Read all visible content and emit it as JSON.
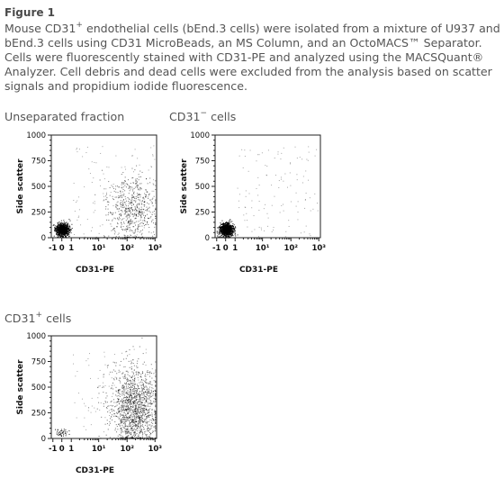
{
  "figure": {
    "title": "Figure 1",
    "caption_line1_a": "Mouse CD31",
    "caption_line1_sup": "+",
    "caption_line1_b": " endothelial cells (bEnd.3 cells) were isolated from a mixture of U937 and",
    "caption_line2": "bEnd.3 cells using CD31 MicroBeads, an MS Column, and an OctoMACS™ Separator.",
    "caption_line3": "Cells were fluorescently stained with CD31-PE and analyzed using the MACSQuant®",
    "caption_line4": "Analyzer. Cell debris and dead cells were excluded from the analysis based on scatter",
    "caption_line5": "signals and propidium iodide fluorescence."
  },
  "panels": {
    "unseparated": {
      "label": "Unseparated fraction"
    },
    "negative": {
      "label_main": "CD31",
      "label_sup": "−",
      "label_rest": " cells"
    },
    "positive": {
      "label_main": "CD31",
      "label_sup": "+",
      "label_rest": " cells"
    }
  },
  "chart_data": [
    {
      "type": "scatter",
      "title": "Unseparated fraction",
      "xlabel": "CD31-PE",
      "ylabel": "Side scatter",
      "x_scale": "biexponential",
      "x_ticks": [
        "-1",
        "0",
        "1",
        "10¹",
        "10²",
        "10³"
      ],
      "y_ticks": [
        "0",
        "250",
        "500",
        "750",
        "1000"
      ],
      "ylim": [
        0,
        1000
      ],
      "populations": [
        {
          "name": "",
          "center_x": 0,
          "center_y": 80,
          "approx_points": 900,
          "spread_y": 60
        },
        {
          "name": "",
          "center_x": 150,
          "center_y": 280,
          "approx_points": 600,
          "spread_y": 180
        }
      ]
    },
    {
      "type": "scatter",
      "title": "CD31− cells",
      "xlabel": "CD31-PE",
      "ylabel": "Side scatter",
      "x_scale": "biexponential",
      "x_ticks": [
        "-1",
        "0",
        "1",
        "10¹",
        "10²",
        "10³"
      ],
      "y_ticks": [
        "0",
        "250",
        "500",
        "750",
        "1000"
      ],
      "ylim": [
        0,
        1000
      ],
      "populations": [
        {
          "name": "",
          "center_x": 0,
          "center_y": 80,
          "approx_points": 1100,
          "spread_y": 60
        }
      ]
    },
    {
      "type": "scatter",
      "title": "CD31+ cells",
      "xlabel": "CD31-PE",
      "ylabel": "Side scatter",
      "x_scale": "biexponential",
      "x_ticks": [
        "-1",
        "0",
        "1",
        "10¹",
        "10²",
        "10³"
      ],
      "y_ticks": [
        "0",
        "250",
        "500",
        "750",
        "1000"
      ],
      "ylim": [
        0,
        1000
      ],
      "populations": [
        {
          "name": "",
          "center_x": 180,
          "center_y": 300,
          "approx_points": 1400,
          "spread_y": 200
        },
        {
          "name": "",
          "center_x": 0,
          "center_y": 60,
          "approx_points": 40,
          "spread_y": 40
        }
      ]
    }
  ]
}
